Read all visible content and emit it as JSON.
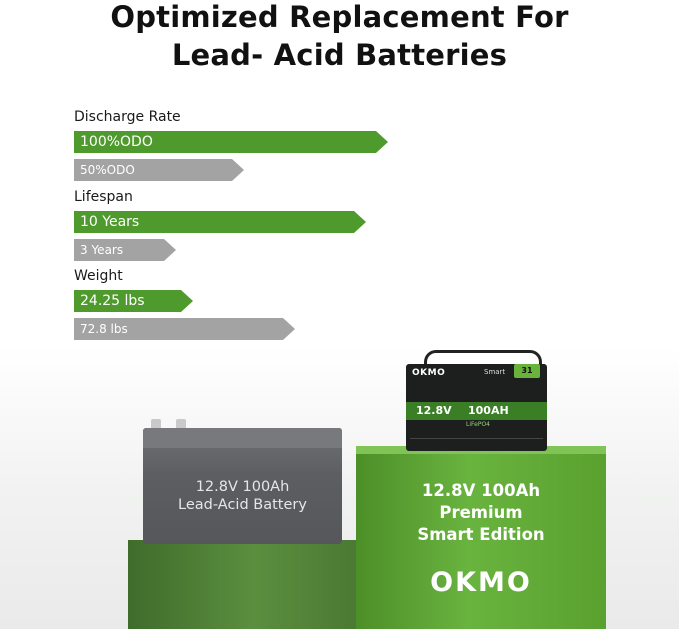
{
  "headline": {
    "line1": "Optimized Replacement For",
    "line2": "Lead- Acid Batteries"
  },
  "comparison": {
    "discharge": {
      "label": "Discharge Rate",
      "lifepo4": {
        "text": "100%ODO",
        "value_percent": 100
      },
      "lead_acid": {
        "text": "50%ODO",
        "value_percent": 50
      }
    },
    "lifespan": {
      "label": "Lifespan",
      "lifepo4": {
        "text": "10 Years",
        "value_years": 10
      },
      "lead_acid": {
        "text": "3 Years",
        "value_years": 3
      }
    },
    "weight": {
      "label": "Weight",
      "lifepo4": {
        "text": "24.25 lbs",
        "value_lbs": 24.25
      },
      "lead_acid": {
        "text": "72.8 lbs",
        "value_lbs": 72.8
      }
    }
  },
  "lead_acid_battery": {
    "line1": "12.8V 100Ah",
    "line2": "Lead-Acid Battery"
  },
  "okmo_battery": {
    "case_logo": "OKMO",
    "case_smart": "Smart",
    "case_badge": "31",
    "case_voltage": "12.8V",
    "case_capacity": "100AH",
    "case_chem": "LiFePO4",
    "line1": "12.8V 100Ah",
    "line2": "Premium",
    "line3": "Smart Edition",
    "brand": "OKMO"
  },
  "colors": {
    "green_bar": "#4f9a2c",
    "gray_bar": "#a3a3a3"
  }
}
